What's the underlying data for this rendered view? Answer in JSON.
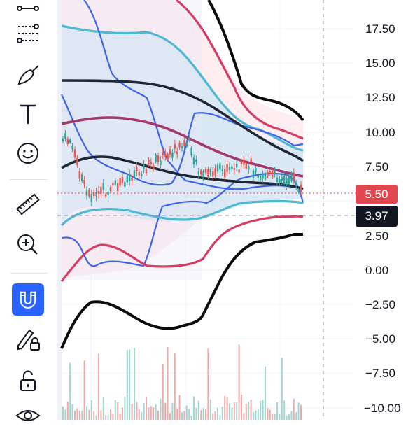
{
  "toolbar": {
    "tools": [
      {
        "name": "trend-line-icon",
        "active": false
      },
      {
        "name": "fib-retracement-icon",
        "active": false
      },
      {
        "name": "brush-icon",
        "active": false
      },
      {
        "name": "text-icon",
        "active": false
      },
      {
        "name": "emoji-icon",
        "active": false
      },
      {
        "name": "ruler-icon",
        "active": false
      },
      {
        "name": "zoom-in-icon",
        "active": false
      },
      {
        "name": "magnet-icon",
        "active": true
      },
      {
        "name": "lock-drawings-icon",
        "active": false
      },
      {
        "name": "unlock-icon",
        "active": false
      },
      {
        "name": "eye-icon",
        "active": false
      }
    ],
    "accent": "#2962ff"
  },
  "price_axis": {
    "labels": [
      "17.50",
      "15.00",
      "12.50",
      "10.00",
      "7.50",
      "5.00",
      "2.50",
      "0.00",
      "−2.50",
      "−5.00",
      "−7.50",
      "−10.00"
    ]
  },
  "badges": {
    "last_price": {
      "text": "5.50",
      "color": "#e0474f"
    },
    "crosshair_price": {
      "text": "3.97",
      "color": "#131722"
    }
  },
  "colors": {
    "band_black": "#0b0b0b",
    "band_crimson": "#d63b63",
    "band_cyan": "#4db8d1",
    "band_blue": "#3d63e6",
    "band_navy": "#1d2735",
    "band_maroon": "#a4386b",
    "candle_up": "#26a69a",
    "candle_down": "#ef5350",
    "volume_up": "#9fd8cf",
    "volume_down": "#f4a9a8"
  }
}
